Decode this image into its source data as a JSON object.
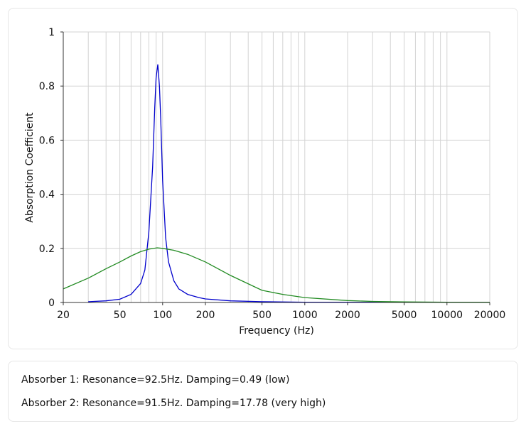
{
  "chart_data": {
    "type": "line",
    "xlabel": "Frequency (Hz)",
    "ylabel": "Absorption Coefficient",
    "x_scale": "log",
    "xlim": [
      20,
      20000
    ],
    "ylim": [
      0,
      1
    ],
    "x_ticks": [
      20,
      50,
      100,
      200,
      500,
      1000,
      2000,
      5000,
      10000,
      20000
    ],
    "x_tick_labels": [
      "20",
      "50",
      "100",
      "200",
      "500",
      "1000",
      "2000",
      "5000",
      "10000",
      "20000"
    ],
    "y_ticks": [
      0,
      0.2,
      0.4,
      0.6,
      0.8,
      1
    ],
    "y_tick_labels": [
      "0",
      "0.2",
      "0.4",
      "0.6",
      "0.8",
      "1"
    ],
    "grid": true,
    "series": [
      {
        "color": "#0000cc",
        "x": [
          30,
          40,
          50,
          60,
          70,
          75,
          80,
          85,
          88,
          90,
          92.5,
          95,
          97,
          100,
          105,
          110,
          120,
          130,
          150,
          180,
          200,
          300,
          500,
          1000,
          2000,
          4000
        ],
        "y": [
          0.003,
          0.006,
          0.012,
          0.03,
          0.07,
          0.12,
          0.26,
          0.5,
          0.72,
          0.83,
          0.88,
          0.8,
          0.68,
          0.45,
          0.24,
          0.15,
          0.08,
          0.05,
          0.03,
          0.018,
          0.013,
          0.006,
          0.003,
          0.001,
          0.001,
          0.001
        ]
      },
      {
        "color": "#228b22",
        "x": [
          20,
          30,
          40,
          50,
          60,
          70,
          80,
          91.5,
          100,
          120,
          150,
          200,
          300,
          500,
          700,
          1000,
          2000,
          3000,
          5000,
          10000,
          20000
        ],
        "y": [
          0.05,
          0.09,
          0.125,
          0.15,
          0.172,
          0.188,
          0.197,
          0.202,
          0.2,
          0.193,
          0.178,
          0.15,
          0.1,
          0.045,
          0.03,
          0.018,
          0.007,
          0.004,
          0.002,
          0.001,
          0.001
        ]
      }
    ]
  },
  "info": {
    "line1": "Absorber 1: Resonance=92.5Hz. Damping=0.49 (low)",
    "line2": "Absorber 2: Resonance=91.5Hz. Damping=17.78 (very high)"
  }
}
